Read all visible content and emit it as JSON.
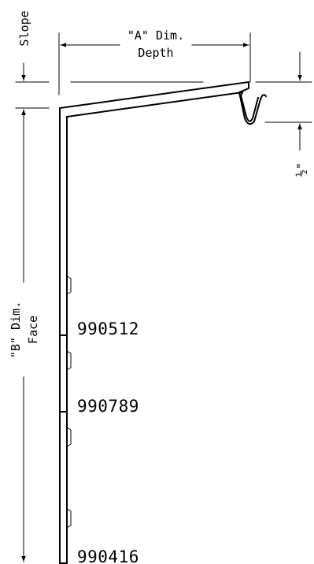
{
  "dimensions": {
    "a_title": "\"A\" Dim.",
    "a_sub": "Depth",
    "b_title": "\"B\" Dim.",
    "b_sub": "Face",
    "slope": "Slope",
    "half_inch": "½\""
  },
  "parts": [
    {
      "number": "990512"
    },
    {
      "number": "990789"
    },
    {
      "number": "990416"
    }
  ]
}
